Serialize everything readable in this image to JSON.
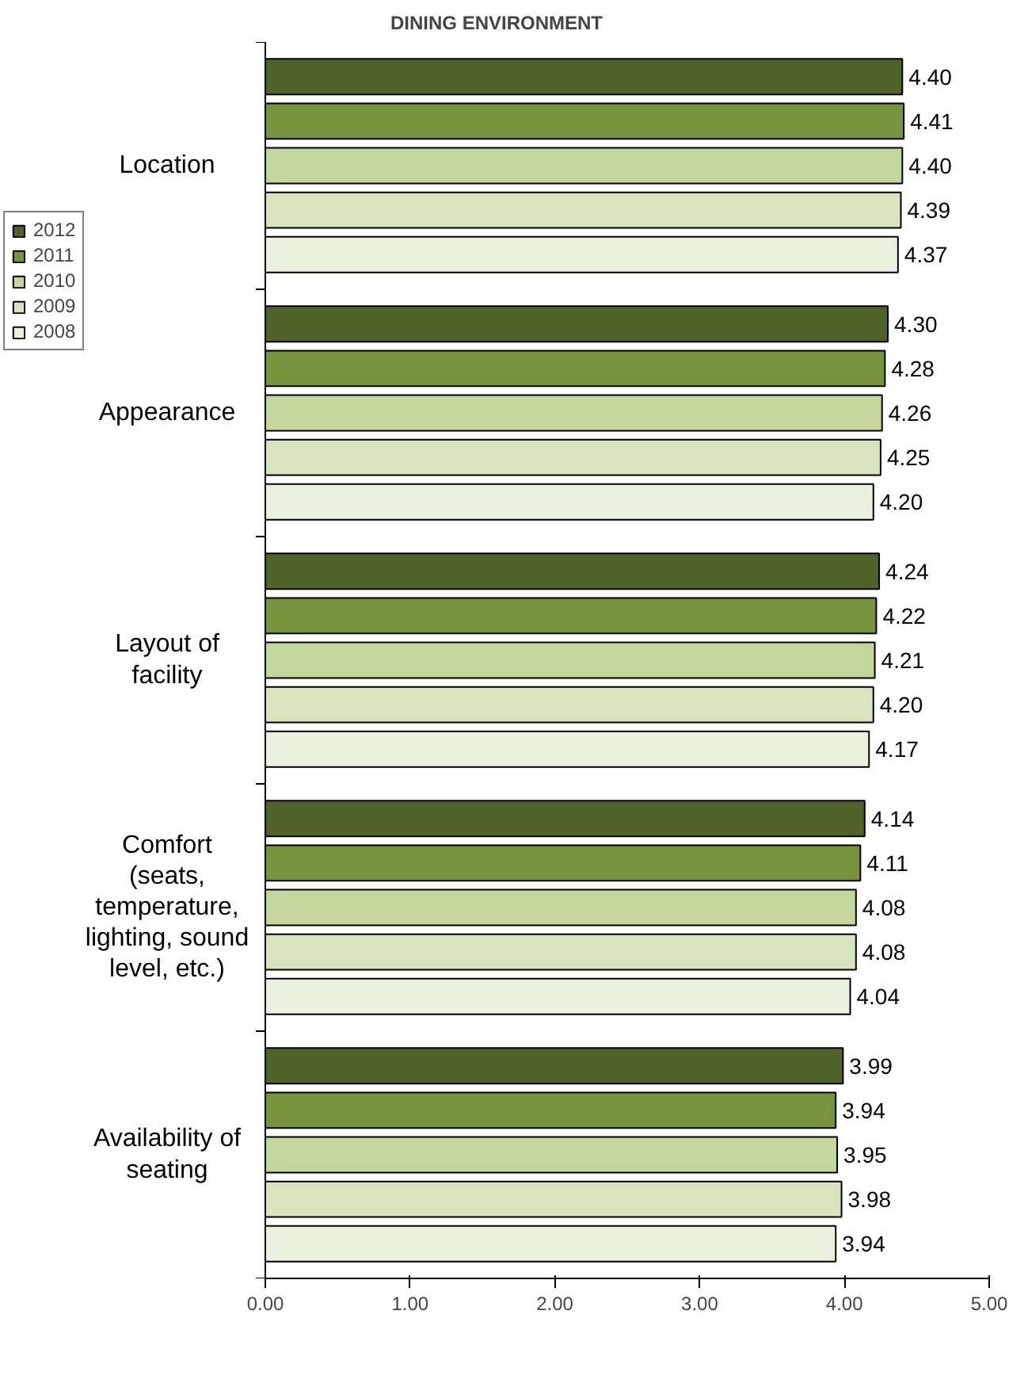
{
  "chart_data": {
    "type": "bar",
    "orientation": "horizontal",
    "title": "DINING ENVIRONMENT",
    "categories": [
      "Location",
      "Appearance",
      "Layout of\nfacility",
      "Comfort\n(seats,\ntemperature,\nlighting, sound\nlevel, etc.)",
      "Availability of\nseating"
    ],
    "series": [
      {
        "name": "2012",
        "color": "#4f6228",
        "values": [
          4.4,
          4.3,
          4.24,
          4.14,
          3.99
        ],
        "value_labels": [
          "4.40",
          "4.30",
          "4.24",
          "4.14",
          "3.99"
        ]
      },
      {
        "name": "2011",
        "color": "#77933c",
        "values": [
          4.41,
          4.28,
          4.22,
          4.11,
          3.94
        ],
        "value_labels": [
          "4.41",
          "4.28",
          "4.22",
          "4.11",
          "3.94"
        ]
      },
      {
        "name": "2010",
        "color": "#c3d69b",
        "values": [
          4.4,
          4.26,
          4.21,
          4.08,
          3.95
        ],
        "value_labels": [
          "4.40",
          "4.26",
          "4.21",
          "4.08",
          "3.95"
        ]
      },
      {
        "name": "2009",
        "color": "#d7e4bd",
        "values": [
          4.39,
          4.25,
          4.2,
          4.08,
          3.98
        ],
        "value_labels": [
          "4.39",
          "4.25",
          "4.20",
          "4.08",
          "3.98"
        ]
      },
      {
        "name": "2008",
        "color": "#ebf1de",
        "values": [
          4.37,
          4.2,
          4.17,
          4.04,
          3.94
        ],
        "value_labels": [
          "4.37",
          "4.20",
          "4.17",
          "4.04",
          "3.94"
        ]
      }
    ],
    "xlim": [
      0,
      5
    ],
    "xticks": [
      {
        "value": 0,
        "label": "0.00"
      },
      {
        "value": 1,
        "label": "1.00"
      },
      {
        "value": 2,
        "label": "2.00"
      },
      {
        "value": 3,
        "label": "3.00"
      },
      {
        "value": 4,
        "label": "4.00"
      },
      {
        "value": 5,
        "label": "5.00"
      }
    ],
    "grid": false,
    "legend": "left"
  }
}
